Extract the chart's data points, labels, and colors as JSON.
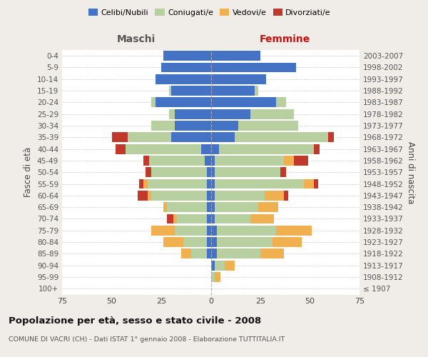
{
  "age_groups": [
    "100+",
    "95-99",
    "90-94",
    "85-89",
    "80-84",
    "75-79",
    "70-74",
    "65-69",
    "60-64",
    "55-59",
    "50-54",
    "45-49",
    "40-44",
    "35-39",
    "30-34",
    "25-29",
    "20-24",
    "15-19",
    "10-14",
    "5-9",
    "0-4"
  ],
  "birth_years": [
    "≤ 1907",
    "1908-1912",
    "1913-1917",
    "1918-1922",
    "1923-1927",
    "1928-1932",
    "1933-1937",
    "1938-1942",
    "1943-1947",
    "1948-1952",
    "1953-1957",
    "1958-1962",
    "1963-1967",
    "1968-1972",
    "1973-1977",
    "1978-1982",
    "1983-1987",
    "1988-1992",
    "1993-1997",
    "1998-2002",
    "2003-2007"
  ],
  "colors": {
    "celibi": "#4472c4",
    "coniugati": "#b8cfa0",
    "vedovi": "#f0b050",
    "divorziati": "#c0392b"
  },
  "maschi": {
    "celibi": [
      0,
      0,
      0,
      2,
      2,
      2,
      2,
      2,
      2,
      2,
      2,
      3,
      5,
      20,
      18,
      18,
      28,
      20,
      28,
      25,
      24
    ],
    "coniugati": [
      0,
      0,
      0,
      8,
      12,
      16,
      15,
      20,
      28,
      30,
      28,
      28,
      38,
      22,
      12,
      3,
      2,
      1,
      0,
      0,
      0
    ],
    "vedovi": [
      0,
      0,
      0,
      5,
      10,
      12,
      2,
      2,
      2,
      2,
      0,
      0,
      0,
      0,
      0,
      0,
      0,
      0,
      0,
      0,
      0
    ],
    "divorziati": [
      0,
      0,
      0,
      0,
      0,
      0,
      3,
      0,
      5,
      2,
      3,
      3,
      5,
      8,
      0,
      0,
      0,
      0,
      0,
      0,
      0
    ]
  },
  "femmine": {
    "celibi": [
      0,
      0,
      2,
      3,
      3,
      3,
      2,
      2,
      2,
      2,
      2,
      2,
      4,
      12,
      14,
      20,
      33,
      22,
      28,
      43,
      25
    ],
    "coniugati": [
      0,
      2,
      5,
      22,
      28,
      30,
      18,
      22,
      25,
      45,
      33,
      35,
      48,
      47,
      30,
      22,
      5,
      2,
      0,
      0,
      0
    ],
    "vedovi": [
      0,
      3,
      5,
      12,
      15,
      18,
      12,
      10,
      10,
      5,
      0,
      5,
      0,
      0,
      0,
      0,
      0,
      0,
      0,
      0,
      0
    ],
    "divorziati": [
      0,
      0,
      0,
      0,
      0,
      0,
      0,
      0,
      2,
      2,
      3,
      7,
      3,
      3,
      0,
      0,
      0,
      0,
      0,
      0,
      0
    ]
  },
  "xlim": 75,
  "title": "Popolazione per età, sesso e stato civile - 2008",
  "subtitle": "COMUNE DI VACRI (CH) - Dati ISTAT 1° gennaio 2008 - Elaborazione TUTTITALIA.IT",
  "ylabel_left": "Fasce di età",
  "ylabel_right": "Anni di nascita",
  "legend_labels": [
    "Celibi/Nubili",
    "Coniugati/e",
    "Vedovi/e",
    "Divorziati/e"
  ],
  "header_maschi": "Maschi",
  "header_femmine": "Femmine",
  "bg_color": "#f0ede8",
  "bar_bg_color": "#ffffff",
  "grid_color": "#cccccc"
}
